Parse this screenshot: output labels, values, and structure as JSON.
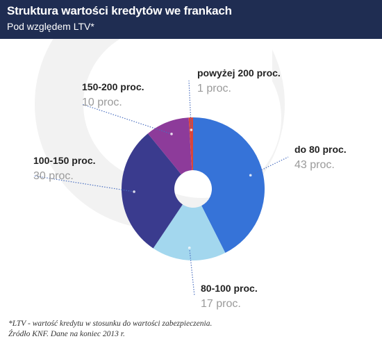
{
  "header": {
    "title": "Struktura wartości kredytów we frankach",
    "subtitle": "Pod względem LTV*"
  },
  "footnote": {
    "line1": "*LTV - wartość kredytu w stosunku do wartości zabezpieczenia.",
    "line2": "Źródło KNF. Dane na koniec 2013 r."
  },
  "chart_data": {
    "type": "pie",
    "title": "Struktura wartości kredytów we frankach",
    "subtitle": "Pod względem LTV*",
    "slices": [
      {
        "label": "do 80 proc.",
        "value": 43,
        "value_label": "43 proc.",
        "color": "#3673d8"
      },
      {
        "label": "80-100 proc.",
        "value": 17,
        "value_label": "17 proc.",
        "color": "#a3d7ee"
      },
      {
        "label": "100-150 proc.",
        "value": 30,
        "value_label": "30 proc.",
        "color": "#3a3b8e"
      },
      {
        "label": "150-200 proc.",
        "value": 10,
        "value_label": "10 proc.",
        "color": "#8d3b9a"
      },
      {
        "label": "powyżej 200 proc.",
        "value": 1,
        "value_label": "1 proc.",
        "color": "#d9453a"
      }
    ],
    "start": "12 o'clock",
    "direction": "clockwise",
    "donut": true
  },
  "colors": {
    "header_bg": "#1f2d52",
    "leader_line": "#4a6fc0",
    "background_mark": "#f2f2f2"
  }
}
